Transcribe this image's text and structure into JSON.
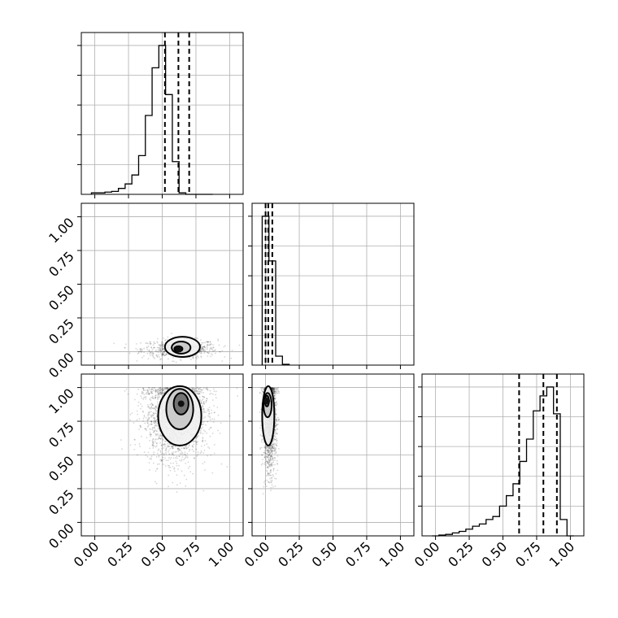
{
  "chart_data": {
    "type": "corner",
    "title": "",
    "variables": [
      "",
      "",
      ""
    ],
    "tick_values": [
      0.0,
      0.25,
      0.5,
      0.75,
      1.0
    ],
    "tick_labels": [
      "0.00",
      "0.25",
      "0.50",
      "0.75",
      "1.00"
    ],
    "axis_range": [
      -0.1,
      1.1
    ],
    "grid": true,
    "diagonal": [
      {
        "variable_index": 0,
        "bins": [
          -0.025,
          0.025,
          0.075,
          0.125,
          0.175,
          0.225,
          0.275,
          0.325,
          0.375,
          0.425,
          0.475,
          0.525,
          0.575,
          0.625,
          0.675,
          0.725,
          0.775,
          0.825,
          0.875
        ],
        "relative_counts": [
          0.01,
          0.01,
          0.015,
          0.02,
          0.04,
          0.07,
          0.13,
          0.26,
          0.53,
          0.85,
          1.0,
          0.67,
          0.22,
          0.01,
          0.0,
          0.0,
          0.0,
          0.0
        ],
        "quantiles": [
          0.52,
          0.62,
          0.7
        ]
      },
      {
        "variable_index": 1,
        "bins": [
          -0.025,
          0.025,
          0.075,
          0.125,
          0.175
        ],
        "relative_counts": [
          1.0,
          0.7,
          0.06,
          0.005
        ],
        "quantiles": [
          0.0,
          0.02,
          0.05
        ]
      },
      {
        "variable_index": 2,
        "bins": [
          -0.025,
          0.025,
          0.075,
          0.125,
          0.175,
          0.225,
          0.275,
          0.325,
          0.375,
          0.425,
          0.475,
          0.525,
          0.575,
          0.625,
          0.675,
          0.725,
          0.775,
          0.825,
          0.875,
          0.925,
          0.975,
          1.025
        ],
        "relative_counts": [
          0.0,
          0.005,
          0.01,
          0.02,
          0.03,
          0.045,
          0.065,
          0.08,
          0.11,
          0.13,
          0.2,
          0.27,
          0.35,
          0.5,
          0.65,
          0.84,
          0.94,
          1.0,
          0.82,
          0.11,
          0.0
        ],
        "quantiles": [
          0.62,
          0.8,
          0.9
        ]
      }
    ],
    "pairs": [
      {
        "x_index": 0,
        "y_index": 1,
        "sample_center": [
          0.63,
          0.02
        ],
        "sample_spread": [
          0.14,
          0.035
        ],
        "sample_count": 700,
        "contours": [
          {
            "center": [
              0.65,
              0.035
            ],
            "radii": [
              0.13,
              0.075
            ]
          },
          {
            "center": [
              0.64,
              0.03
            ],
            "radii": [
              0.07,
              0.045
            ]
          },
          {
            "center": [
              0.62,
              0.02
            ],
            "radii": [
              0.03,
              0.02
            ]
          }
        ]
      },
      {
        "x_index": 0,
        "y_index": 2,
        "sample_center": [
          0.6,
          0.8
        ],
        "sample_spread": [
          0.12,
          0.17
        ],
        "sample_count": 2000,
        "contours": [
          {
            "center": [
              0.63,
              0.79
            ],
            "radii": [
              0.16,
              0.22
            ]
          },
          {
            "center": [
              0.63,
              0.84
            ],
            "radii": [
              0.1,
              0.15
            ]
          },
          {
            "center": [
              0.64,
              0.88
            ],
            "radii": [
              0.055,
              0.08
            ]
          }
        ]
      },
      {
        "x_index": 1,
        "y_index": 2,
        "sample_center": [
          0.03,
          0.78
        ],
        "sample_spread": [
          0.025,
          0.2
        ],
        "sample_count": 1500,
        "contours": [
          {
            "center": [
              0.02,
              0.79
            ],
            "radii": [
              0.045,
              0.22
            ]
          },
          {
            "center": [
              0.015,
              0.87
            ],
            "radii": [
              0.03,
              0.09
            ]
          },
          {
            "center": [
              0.01,
              0.9
            ],
            "radii": [
              0.015,
              0.04
            ]
          }
        ]
      }
    ]
  }
}
